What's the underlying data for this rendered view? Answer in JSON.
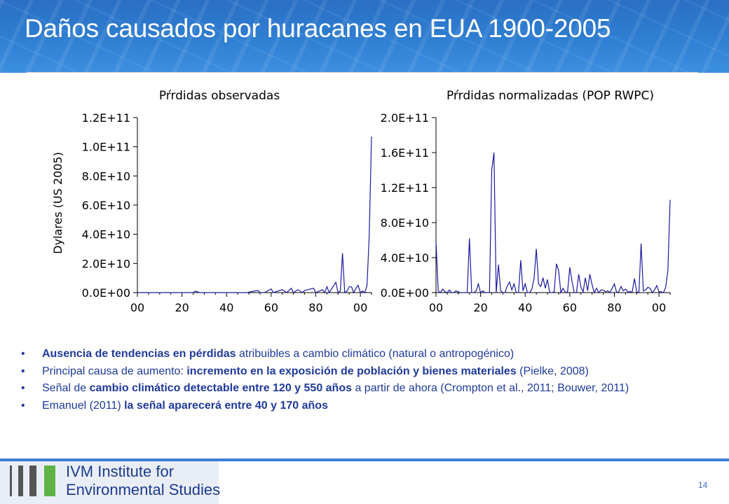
{
  "header": {
    "title": "Daños causados por huracanes en EUA 1900-2005"
  },
  "charts": {
    "ylabel": "Dylares (US 2005)",
    "xticks": [
      "00",
      "20",
      "40",
      "60",
      "80",
      "00"
    ]
  },
  "chart_data": [
    {
      "type": "line",
      "title": "Pŕrdidas observadas",
      "ylabel": "Dylares (US 2005)",
      "xlabel": "",
      "x_tick_labels": [
        "00",
        "20",
        "40",
        "60",
        "80",
        "00"
      ],
      "y_tick_labels": [
        "0.0E+00",
        "2.0E+10",
        "4.0E+10",
        "6.0E+10",
        "8.0E+10",
        "1.0E+11",
        "1.2E+11"
      ],
      "xlim": [
        1900,
        2005
      ],
      "ylim": [
        0,
        120000000000
      ],
      "series": [
        {
          "x": [
            1900,
            1915,
            1919,
            1925,
            1926,
            1928,
            1935,
            1938,
            1944,
            1945,
            1947,
            1949,
            1954,
            1955,
            1957,
            1960,
            1961,
            1965,
            1967,
            1969,
            1970,
            1972,
            1974,
            1975,
            1979,
            1980,
            1983,
            1984,
            1985,
            1986,
            1989,
            1990,
            1991,
            1992,
            1993,
            1994,
            1995,
            1996,
            1997,
            1998,
            1999,
            2000,
            2001,
            2002,
            2003,
            2004,
            2005
          ],
          "y": [
            0,
            0,
            0,
            0,
            1000000000,
            0,
            0,
            0,
            0,
            0,
            0,
            0,
            1500000000,
            0,
            0,
            2500000000,
            0,
            2000000000,
            0,
            3000000000,
            0,
            2000000000,
            0,
            1500000000,
            3000000000,
            0,
            2000000000,
            0,
            4000000000,
            0,
            7000000000,
            0,
            1000000000,
            27000000000,
            0,
            1000000000,
            4000000000,
            4000000000,
            0,
            3000000000,
            5000000000,
            0,
            1000000000,
            0,
            5000000000,
            40000000000,
            107000000000
          ]
        }
      ]
    },
    {
      "type": "line",
      "title": "Pŕrdidas normalizadas (POP RWPC)",
      "xlabel": "",
      "x_tick_labels": [
        "00",
        "20",
        "40",
        "60",
        "80",
        "00"
      ],
      "y_tick_labels": [
        "0.0E+00",
        "4.0E+10",
        "8.0E+10",
        "1.2E+11",
        "1.6E+11",
        "2.0E+11"
      ],
      "xlim": [
        1900,
        2005
      ],
      "ylim": [
        0,
        200000000000
      ],
      "series": [
        {
          "x": [
            1900,
            1901,
            1902,
            1903,
            1904,
            1905,
            1906,
            1907,
            1908,
            1909,
            1910,
            1911,
            1912,
            1913,
            1914,
            1915,
            1916,
            1917,
            1918,
            1919,
            1920,
            1921,
            1922,
            1923,
            1924,
            1925,
            1926,
            1927,
            1928,
            1929,
            1930,
            1931,
            1932,
            1933,
            1934,
            1935,
            1936,
            1937,
            1938,
            1939,
            1940,
            1941,
            1942,
            1943,
            1944,
            1945,
            1946,
            1947,
            1948,
            1949,
            1950,
            1951,
            1952,
            1953,
            1954,
            1955,
            1956,
            1957,
            1958,
            1959,
            1960,
            1961,
            1962,
            1963,
            1964,
            1965,
            1966,
            1967,
            1968,
            1969,
            1970,
            1971,
            1972,
            1973,
            1974,
            1975,
            1976,
            1977,
            1978,
            1979,
            1980,
            1981,
            1982,
            1983,
            1984,
            1985,
            1986,
            1987,
            1988,
            1989,
            1990,
            1991,
            1992,
            1993,
            1994,
            1995,
            1996,
            1997,
            1998,
            1999,
            2000,
            2001,
            2002,
            2003,
            2004,
            2005
          ],
          "y": [
            58000000000,
            2000000000,
            0,
            4000000000,
            1000000000,
            0,
            3000000000,
            0,
            0,
            2000000000,
            1000000000,
            0,
            0,
            0,
            0,
            62000000000,
            0,
            0,
            2000000000,
            10000000000,
            0,
            2000000000,
            0,
            0,
            0,
            140000000000,
            160000000000,
            0,
            32000000000,
            2000000000,
            0,
            0,
            8000000000,
            12000000000,
            3000000000,
            10000000000,
            0,
            0,
            37000000000,
            2000000000,
            10000000000,
            0,
            0,
            4000000000,
            17000000000,
            50000000000,
            10000000000,
            7000000000,
            17000000000,
            5000000000,
            15000000000,
            0,
            0,
            1000000000,
            33000000000,
            25000000000,
            0,
            5000000000,
            0,
            1000000000,
            29000000000,
            13000000000,
            0,
            0,
            21000000000,
            6000000000,
            1000000000,
            17000000000,
            2000000000,
            21000000000,
            9000000000,
            0,
            5000000000,
            0,
            3000000000,
            3000000000,
            1000000000,
            2000000000,
            0,
            5000000000,
            10000000000,
            0,
            1000000000,
            7000000000,
            2000000000,
            4000000000,
            1000000000,
            1000000000,
            1000000000,
            16000000000,
            1000000000,
            0,
            56000000000,
            2000000000,
            3000000000,
            6000000000,
            5000000000,
            0,
            3000000000,
            8000000000,
            1000000000,
            1000000000,
            0,
            6000000000,
            25000000000,
            106000000000
          ]
        }
      ]
    }
  ],
  "bullets": [
    {
      "bold": "Ausencia de tendencias en pérdidas",
      "rest": " atribuibles a cambio climático (natural o antropogénico)"
    },
    {
      "pre": "Principal causa de aumento: ",
      "bold": "incremento en la exposición de población y bienes materiales",
      "post": " (Pielke, 2008)"
    },
    {
      "pre": "Señal de ",
      "bold": "cambio climático detectable entre 120 y 550 años",
      "post": " a partir de ahora (Crompton et al., 2011; Bouwer, 2011)"
    },
    {
      "pre": "Emanuel (2011) ",
      "bold": "la señal aparecerá entre 40 y 170 años"
    }
  ],
  "bullet_char": "•",
  "footer": {
    "line1": "IVM Institute for",
    "line2": "Environmental Studies",
    "page_number": "14"
  },
  "colors": {
    "header_blue": "#2f7fd2",
    "line_series": "#1a1a9e",
    "bullet_text": "#1f3a9b",
    "logo_text": "#1d3a8f",
    "footer_bar": "#3a7fd5",
    "logo_green": "#5fb346",
    "logo_gray": "#555555"
  }
}
